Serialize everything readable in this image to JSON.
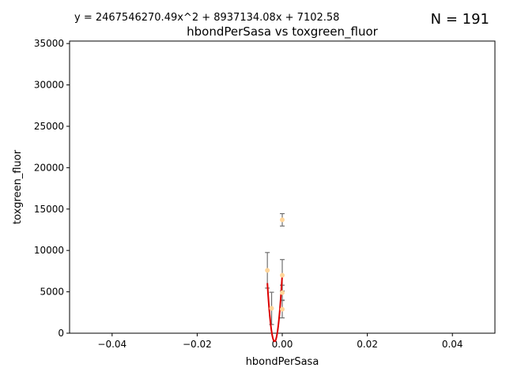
{
  "chart_data": {
    "type": "scatter",
    "title": "hbondPerSasa vs toxgreen_fluor",
    "equation": "y = 2467546270.49x^2 + 8937134.08x + 7102.58",
    "n_label": "N = 191",
    "xlabel": "hbondPerSasa",
    "ylabel": "toxgreen_fluor",
    "xlim": [
      -0.05,
      0.05
    ],
    "ylim": [
      0,
      35300
    ],
    "x_ticks": [
      -0.04,
      -0.02,
      0.0,
      0.02,
      0.04
    ],
    "x_tick_labels": [
      "−0.04",
      "−0.02",
      "0.00",
      "0.02",
      "0.04"
    ],
    "y_ticks": [
      0,
      5000,
      10000,
      15000,
      20000,
      25000,
      30000,
      35000
    ],
    "y_tick_labels": [
      "0",
      "5000",
      "10000",
      "15000",
      "20000",
      "25000",
      "30000",
      "35000"
    ],
    "grid": false,
    "points": [
      {
        "x": -0.0035,
        "y": 7600,
        "err": 2150
      },
      {
        "x": -0.0025,
        "y": 3000,
        "err": 1950
      },
      {
        "x": 0.0,
        "y": 13700,
        "err": 750
      },
      {
        "x": 0.0,
        "y": 7000,
        "err": 1900
      },
      {
        "x": 0.0,
        "y": 4900,
        "err": 900
      },
      {
        "x": 0.0,
        "y": 2900,
        "err": 1050
      }
    ],
    "fit": {
      "coefficients": [
        2467546270.49,
        8937134.08,
        7102.58
      ],
      "x_range": [
        -0.0035,
        0.0
      ]
    },
    "colors": {
      "points": "#ffd59a",
      "errorbars": "#707070",
      "fit": "#dd0000",
      "axes": "#000000"
    }
  }
}
